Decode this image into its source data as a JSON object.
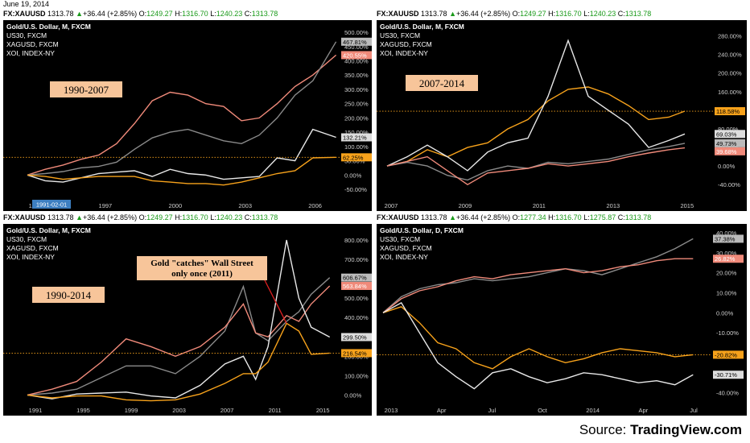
{
  "header_date": "June 19, 2014",
  "source": {
    "prefix": "Source: ",
    "name": "TradingView.com"
  },
  "colors": {
    "gold": "#f7a21b",
    "us30": "#8a8a8a",
    "silver": "#e8e8e8",
    "xoi": "#f08a7a"
  },
  "chart_data": [
    {
      "type": "line",
      "quote": {
        "symbol": "FX:XAUUSD",
        "last": "1313.78",
        "change": "+36.44 (+2.85%)",
        "o": "1249.27",
        "h": "1316.70",
        "l": "1240.23",
        "c": "1313.78"
      },
      "legend": [
        "Gold/U.S. Dollar, M, FXCM",
        "US30, FXCM",
        "XAGUSD, FXCM",
        "XOI, INDEX-NY"
      ],
      "annotation": "1990-2007",
      "x_ticks": [
        "1994",
        "1997",
        "2000",
        "2003",
        "2006"
      ],
      "x_marker": "1991-02-01",
      "y_ticks": [
        "500.00%",
        "450.00%",
        "400.00%",
        "350.00%",
        "300.00%",
        "250.00%",
        "200.00%",
        "150.00%",
        "100.00%",
        "50.00%",
        "0.00%",
        "-50.00%"
      ],
      "ylim": [
        -50,
        520
      ],
      "xlim": [
        1990,
        2007.5
      ],
      "series": [
        {
          "name": "XOI",
          "last_label": "420.55%",
          "x": [
            1990,
            1991,
            1992,
            1993,
            1994,
            1995,
            1996,
            1997,
            1998,
            1999,
            2000,
            2001,
            2002,
            2003,
            2004,
            2005,
            2006,
            2007.3
          ],
          "values": [
            0,
            20,
            35,
            55,
            70,
            110,
            180,
            260,
            290,
            280,
            250,
            240,
            190,
            200,
            250,
            310,
            350,
            420
          ]
        },
        {
          "name": "US30",
          "last_label": "467.81%",
          "x": [
            1990,
            1991,
            1992,
            1993,
            1994,
            1995,
            1996,
            1997,
            1998,
            1999,
            2000,
            2001,
            2002,
            2003,
            2004,
            2005,
            2006,
            2007.3
          ],
          "values": [
            0,
            5,
            12,
            25,
            30,
            45,
            90,
            130,
            150,
            160,
            140,
            120,
            110,
            140,
            200,
            280,
            330,
            467
          ]
        },
        {
          "name": "XAGUSD",
          "last_label": "132.21%",
          "x": [
            1990,
            1991,
            1992,
            1993,
            1994,
            1995,
            1996,
            1997,
            1998,
            1999,
            2000,
            2001,
            2002,
            2003,
            2004,
            2005,
            2006,
            2007.3
          ],
          "values": [
            0,
            -20,
            -25,
            -10,
            5,
            10,
            15,
            -5,
            20,
            5,
            0,
            -15,
            -10,
            -5,
            60,
            50,
            160,
            132
          ]
        },
        {
          "name": "Gold",
          "last_label": "62.25%",
          "x": [
            1990,
            1991,
            1992,
            1993,
            1994,
            1995,
            1996,
            1997,
            1998,
            1999,
            2000,
            2001,
            2002,
            2003,
            2004,
            2005,
            2006,
            2007.3
          ],
          "values": [
            0,
            -5,
            -15,
            -10,
            -5,
            -5,
            -5,
            -20,
            -25,
            -30,
            -30,
            -35,
            -25,
            -10,
            5,
            15,
            60,
            62
          ]
        }
      ]
    },
    {
      "type": "line",
      "quote": {
        "symbol": "FX:XAUUSD",
        "last": "1313.78",
        "change": "+36.44 (+2.85%)",
        "o": "1249.27",
        "h": "1316.70",
        "l": "1240.23",
        "c": "1313.78"
      },
      "legend": [
        "Gold/U.S. Dollar, M, FXCM",
        "US30, FXCM",
        "XAGUSD, FXCM",
        "XOI, INDEX-NY"
      ],
      "annotation": "2007-2014",
      "x_ticks": [
        "2007",
        "2009",
        "2011",
        "2013",
        "2015"
      ],
      "y_ticks": [
        "280.00%",
        "240.00%",
        "200.00%",
        "160.00%",
        "120.00%",
        "80.00%",
        "40.00%",
        "0.00%",
        "-40.00%"
      ],
      "ylim": [
        -50,
        300
      ],
      "xlim": [
        2006.9,
        2015.1
      ],
      "series": [
        {
          "name": "Gold",
          "last_label": "118.58%",
          "x": [
            2007,
            2007.5,
            2008,
            2008.5,
            2009,
            2009.5,
            2010,
            2010.5,
            2011,
            2011.5,
            2012,
            2012.5,
            2013,
            2013.5,
            2014,
            2014.4
          ],
          "values": [
            0,
            10,
            35,
            20,
            40,
            50,
            80,
            100,
            140,
            165,
            170,
            155,
            130,
            100,
            105,
            118
          ]
        },
        {
          "name": "XAGUSD",
          "last_label": "69.03%",
          "x": [
            2007,
            2007.5,
            2008,
            2008.5,
            2009,
            2009.5,
            2010,
            2010.5,
            2011,
            2011.5,
            2012,
            2012.5,
            2013,
            2013.5,
            2014,
            2014.4
          ],
          "values": [
            0,
            20,
            45,
            20,
            -10,
            30,
            50,
            60,
            150,
            270,
            150,
            120,
            90,
            40,
            55,
            69
          ]
        },
        {
          "name": "US30",
          "last_label": "49.73%",
          "x": [
            2007,
            2007.5,
            2008,
            2008.5,
            2009,
            2009.5,
            2010,
            2010.5,
            2011,
            2011.5,
            2012,
            2012.5,
            2013,
            2013.5,
            2014,
            2014.4
          ],
          "values": [
            0,
            8,
            0,
            -20,
            -30,
            -10,
            0,
            -5,
            8,
            5,
            10,
            15,
            25,
            35,
            42,
            49
          ]
        },
        {
          "name": "XOI",
          "last_label": "39.68%",
          "x": [
            2007,
            2007.5,
            2008,
            2008.5,
            2009,
            2009.5,
            2010,
            2010.5,
            2011,
            2011.5,
            2012,
            2012.5,
            2013,
            2013.5,
            2014,
            2014.4
          ],
          "values": [
            0,
            10,
            20,
            -10,
            -40,
            -15,
            -10,
            -5,
            5,
            0,
            5,
            10,
            20,
            28,
            35,
            39
          ]
        }
      ]
    },
    {
      "type": "line",
      "quote": {
        "symbol": "FX:XAUUSD",
        "last": "1313.78",
        "change": "+36.44 (+2.85%)",
        "o": "1249.27",
        "h": "1316.70",
        "l": "1240.23",
        "c": "1313.78"
      },
      "legend": [
        "Gold/U.S. Dollar, M, FXCM",
        "US30, FXCM",
        "XAGUSD, FXCM",
        "XOI, INDEX-NY"
      ],
      "annotation": "1990-2014",
      "callout": [
        "Gold \"catches\" Wall Street",
        "only once (2011)"
      ],
      "x_ticks": [
        "1991",
        "1995",
        "1999",
        "2003",
        "2007",
        "2011",
        "2015"
      ],
      "y_ticks": [
        "800.00%",
        "700.00%",
        "600.00%",
        "500.00%",
        "400.00%",
        "300.00%",
        "200.00%",
        "100.00%",
        "0.00%"
      ],
      "ylim": [
        -40,
        850
      ],
      "xlim": [
        1990,
        2015.3
      ],
      "series": [
        {
          "name": "US30",
          "last_label": "606.67%",
          "x": [
            1990,
            1992,
            1994,
            1996,
            1998,
            2000,
            2002,
            2004,
            2006,
            2007.5,
            2008.5,
            2009.5,
            2011,
            2012,
            2013,
            2014.5
          ],
          "values": [
            0,
            10,
            30,
            90,
            150,
            150,
            110,
            200,
            330,
            560,
            320,
            280,
            380,
            430,
            520,
            606
          ]
        },
        {
          "name": "XOI",
          "last_label": "563.84%",
          "x": [
            1990,
            1992,
            1994,
            1996,
            1998,
            2000,
            2002,
            2004,
            2006,
            2007.5,
            2008.5,
            2009.5,
            2011,
            2012,
            2013,
            2014.5
          ],
          "values": [
            0,
            30,
            70,
            170,
            290,
            250,
            200,
            250,
            350,
            470,
            320,
            300,
            410,
            380,
            470,
            563
          ]
        },
        {
          "name": "XAGUSD",
          "last_label": "299.50%",
          "x": [
            1990,
            1992,
            1994,
            1996,
            1998,
            2000,
            2002,
            2004,
            2006,
            2007.5,
            2008.5,
            2009.5,
            2011,
            2012,
            2013,
            2014.5
          ],
          "values": [
            0,
            -20,
            5,
            10,
            15,
            -5,
            -15,
            50,
            160,
            200,
            80,
            250,
            800,
            500,
            350,
            299
          ]
        },
        {
          "name": "Gold",
          "last_label": "216.54%",
          "x": [
            1990,
            1992,
            1994,
            1996,
            1998,
            2000,
            2002,
            2004,
            2006,
            2007.5,
            2008.5,
            2009.5,
            2011,
            2012,
            2013,
            2014.5
          ],
          "values": [
            0,
            -15,
            -5,
            -5,
            -25,
            -30,
            -25,
            5,
            60,
            110,
            110,
            170,
            370,
            330,
            210,
            216
          ]
        }
      ]
    },
    {
      "type": "line",
      "quote": {
        "symbol": "FX:XAUUSD",
        "last": "1313.78",
        "change": "+36.44 (+2.85%)",
        "o": "1277.34",
        "h": "1316.70",
        "l": "1275.87",
        "c": "1313.78"
      },
      "legend": [
        "Gold/U.S. Dollar, D, FXCM",
        "US30, FXCM",
        "XAGUSD, FXCM",
        "XOI, INDEX-NY"
      ],
      "x_ticks": [
        "2013",
        "Apr",
        "Jul",
        "Oct",
        "2014",
        "Apr",
        "Jul"
      ],
      "y_ticks": [
        "40.00%",
        "30.00%",
        "20.00%",
        "10.00%",
        "0.00%",
        "-10.00%",
        "-20.00%",
        "-30.00%",
        "-40.00%"
      ],
      "ylim": [
        -45,
        42
      ],
      "xlim": [
        0,
        18
      ],
      "series": [
        {
          "name": "US30",
          "last_label": "37.38%",
          "x": [
            0,
            1,
            2,
            3,
            4,
            5,
            6,
            7,
            8,
            9,
            10,
            11,
            12,
            13,
            14,
            15,
            16,
            17
          ],
          "values": [
            0,
            8,
            12,
            14,
            15,
            17,
            16,
            17,
            18,
            20,
            22,
            21,
            19,
            22,
            25,
            28,
            32,
            37
          ]
        },
        {
          "name": "XOI",
          "last_label": "26.82%",
          "x": [
            0,
            1,
            2,
            3,
            4,
            5,
            6,
            7,
            8,
            9,
            10,
            11,
            12,
            13,
            14,
            15,
            16,
            17
          ],
          "values": [
            0,
            7,
            11,
            13,
            16,
            18,
            17,
            19,
            20,
            21,
            22,
            20,
            21,
            23,
            24,
            26,
            27,
            27
          ]
        },
        {
          "name": "Gold",
          "last_label": "-20.82%",
          "x": [
            0,
            1,
            2,
            3,
            4,
            5,
            6,
            7,
            8,
            9,
            10,
            11,
            12,
            13,
            14,
            15,
            16,
            17
          ],
          "values": [
            0,
            3,
            -5,
            -15,
            -18,
            -25,
            -28,
            -22,
            -18,
            -22,
            -25,
            -23,
            -20,
            -18,
            -19,
            -20,
            -22,
            -21
          ]
        },
        {
          "name": "XAGUSD",
          "last_label": "-30.71%",
          "x": [
            0,
            1,
            2,
            3,
            4,
            5,
            6,
            7,
            8,
            9,
            10,
            11,
            12,
            13,
            14,
            15,
            16,
            17
          ],
          "values": [
            0,
            5,
            -10,
            -25,
            -32,
            -38,
            -30,
            -28,
            -32,
            -35,
            -33,
            -30,
            -31,
            -33,
            -35,
            -34,
            -36,
            -31
          ]
        }
      ]
    }
  ]
}
